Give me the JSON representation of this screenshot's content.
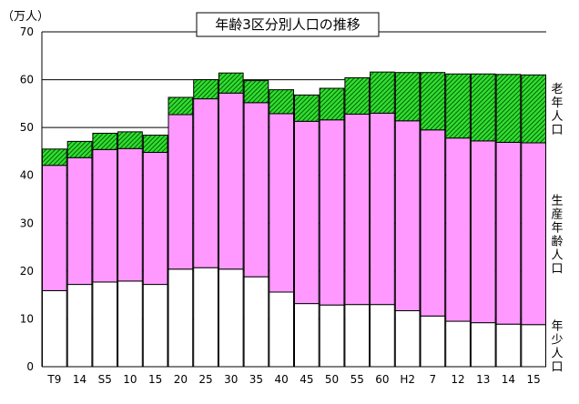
{
  "chart_data": {
    "type": "bar",
    "stacked": true,
    "title": "年齢3区分別人口の推移",
    "ylabel": "（万人）",
    "xlabel": "",
    "ylim": [
      0,
      70
    ],
    "yticks": [
      0,
      10,
      20,
      30,
      40,
      50,
      60,
      70
    ],
    "grid": true,
    "categories": [
      "T9",
      "14",
      "S5",
      "10",
      "15",
      "20",
      "25",
      "30",
      "35",
      "40",
      "45",
      "50",
      "55",
      "60",
      "H2",
      "7",
      "12",
      "13",
      "14",
      "15"
    ],
    "series": [
      {
        "name": "年少人口",
        "color": "#ffffff",
        "values": [
          15.9,
          17.2,
          17.7,
          17.9,
          17.2,
          20.4,
          20.7,
          20.4,
          18.8,
          15.6,
          13.2,
          12.9,
          13.0,
          13.0,
          11.7,
          10.6,
          9.5,
          9.2,
          8.9,
          8.8
        ]
      },
      {
        "name": "生産年齢人口",
        "color": "#ff99ff",
        "values": [
          26.2,
          26.5,
          27.7,
          27.7,
          27.6,
          32.3,
          35.3,
          36.8,
          36.4,
          37.3,
          38.1,
          38.7,
          39.8,
          40.0,
          39.7,
          38.9,
          38.3,
          38.0,
          38.0,
          38.0
        ]
      },
      {
        "name": "老年人口",
        "color": "#33dd33",
        "values": [
          3.4,
          3.4,
          3.4,
          3.5,
          3.6,
          3.6,
          4.0,
          4.2,
          4.6,
          5.0,
          5.5,
          6.6,
          7.6,
          8.6,
          10.1,
          12.0,
          13.4,
          14.0,
          14.2,
          14.2
        ]
      }
    ],
    "legend_placement": "right"
  }
}
